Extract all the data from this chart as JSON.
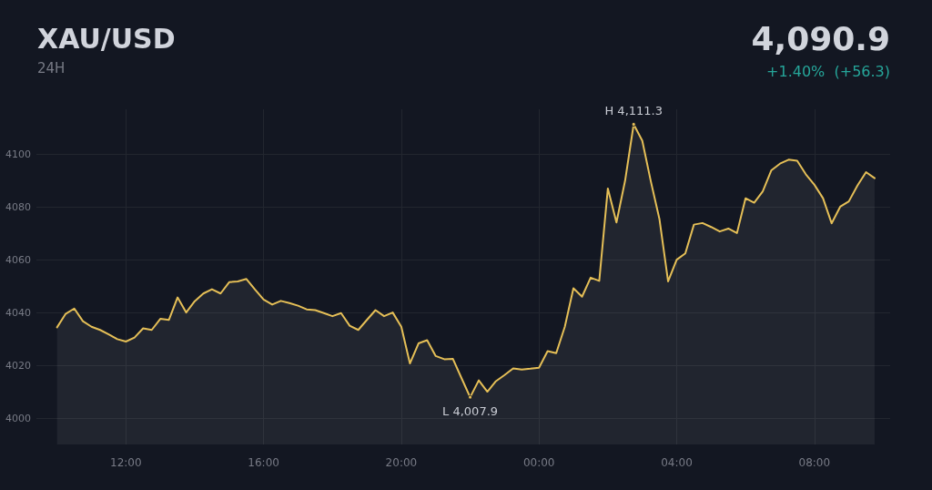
{
  "chart_data": {
    "type": "area",
    "title": "XAU/USD",
    "subtitle": "24H",
    "annotations": [
      "4,090.9",
      "+1.40%  (+56.3)",
      {
        "text": "H 4,111.3",
        "x": "--01-02T02:45",
        "y": 4111.3
      },
      {
        "text": "L 4,007.9",
        "x": "--01-01T22:00",
        "y": 4007.9
      }
    ],
    "x": [
      "--01-01T10:00",
      "--01-01T10:15",
      "--01-01T10:30",
      "--01-01T10:45",
      "--01-01T11:00",
      "--01-01T11:15",
      "--01-01T11:30",
      "--01-01T11:45",
      "--01-01T12:00",
      "--01-01T12:15",
      "--01-01T12:30",
      "--01-01T12:45",
      "--01-01T13:00",
      "--01-01T13:15",
      "--01-01T13:30",
      "--01-01T13:45",
      "--01-01T14:00",
      "--01-01T14:15",
      "--01-01T14:30",
      "--01-01T14:45",
      "--01-01T15:00",
      "--01-01T15:15",
      "--01-01T15:30",
      "--01-01T15:45",
      "--01-01T16:00",
      "--01-01T16:15",
      "--01-01T16:30",
      "--01-01T16:45",
      "--01-01T17:00",
      "--01-01T17:15",
      "--01-01T17:30",
      "--01-01T17:45",
      "--01-01T18:00",
      "--01-01T18:15",
      "--01-01T18:30",
      "--01-01T18:45",
      "--01-01T19:00",
      "--01-01T19:15",
      "--01-01T19:30",
      "--01-01T19:45",
      "--01-01T20:00",
      "--01-01T20:15",
      "--01-01T20:30",
      "--01-01T20:45",
      "--01-01T21:00",
      "--01-01T21:15",
      "--01-01T21:30",
      "--01-01T21:45",
      "--01-01T22:00",
      "--01-01T22:15",
      "--01-01T22:30",
      "--01-01T22:45",
      "--01-01T23:00",
      "--01-01T23:15",
      "--01-01T23:30",
      "--01-01T23:45",
      "--01-02T00:00",
      "--01-02T00:15",
      "--01-02T00:30",
      "--01-02T00:45",
      "--01-02T01:00",
      "--01-02T01:15",
      "--01-02T01:30",
      "--01-02T01:45",
      "--01-02T02:00",
      "--01-02T02:15",
      "--01-02T02:30",
      "--01-02T02:45",
      "--01-02T03:00",
      "--01-02T03:15",
      "--01-02T03:30",
      "--01-02T03:45",
      "--01-02T04:00",
      "--01-02T04:15",
      "--01-02T04:30",
      "--01-02T04:45",
      "--01-02T05:00",
      "--01-02T05:15",
      "--01-02T05:30",
      "--01-02T05:45",
      "--01-02T06:00",
      "--01-02T06:15",
      "--01-02T06:30",
      "--01-02T06:45",
      "--01-02T07:00",
      "--01-02T07:15",
      "--01-02T07:30",
      "--01-02T07:45",
      "--01-02T08:00",
      "--01-02T08:15",
      "--01-02T08:30",
      "--01-02T08:45",
      "--01-02T09:00",
      "--01-02T09:15",
      "--01-02T09:30",
      "--01-02T09:45"
    ],
    "series": [
      {
        "color": "#e5bf57",
        "values": [
          4034.4,
          4039.5,
          4041.5,
          4036.7,
          4034.6,
          4033.4,
          4031.7,
          4029.9,
          4029.0,
          4030.5,
          4034.0,
          4033.4,
          4037.6,
          4037.2,
          4045.7,
          4040.0,
          4044.3,
          4047.2,
          4048.8,
          4047.2,
          4051.5,
          4051.8,
          4052.7,
          4048.7,
          4044.9,
          4043.0,
          4044.4,
          4043.6,
          4042.6,
          4041.2,
          4040.9,
          4039.8,
          4038.6,
          4039.8,
          4035.0,
          4033.4,
          4037.2,
          4040.9,
          4038.6,
          4040.0,
          4034.6,
          4020.7,
          4028.3,
          4029.5,
          4023.5,
          4022.3,
          4022.4,
          4015.1,
          4007.9,
          4014.3,
          4010.0,
          4014.0,
          4016.3,
          4018.8,
          4018.4,
          4018.7,
          4019.1,
          4025.4,
          4024.6,
          4034.6,
          4049.2,
          4046.0,
          4053.2,
          4052.0,
          4087.0,
          4074.1,
          4089.9,
          4111.3,
          4105.1,
          4089.6,
          4075.3,
          4051.8,
          4060.0,
          4062.4,
          4073.3,
          4073.9,
          4072.4,
          4070.7,
          4071.8,
          4070.1,
          4083.3,
          4081.6,
          4085.9,
          4093.9,
          4096.4,
          4097.9,
          4097.5,
          4092.4,
          4088.4,
          4083.3,
          4073.8,
          4080.1,
          4082.1,
          4088.1,
          4093.2,
          4090.9
        ]
      }
    ],
    "xlim": [
      "--01-01T09:24",
      "--01-02T10:12"
    ],
    "xticks": [
      {
        "value": "--01-01T12:00",
        "label": "12:00"
      },
      {
        "value": "--01-01T16:00",
        "label": "16:00"
      },
      {
        "value": "--01-01T20:00",
        "label": "20:00"
      },
      {
        "value": "--01-02T00:00",
        "label": "00:00"
      },
      {
        "value": "--01-02T04:00",
        "label": "04:00"
      },
      {
        "value": "--01-02T08:00",
        "label": "08:00"
      }
    ],
    "ylim": [
      3990,
      4117
    ],
    "yticks": [
      4000,
      4020,
      4040,
      4060,
      4080,
      4100
    ],
    "grid": true,
    "marker": "none",
    "line_style": "solid"
  }
}
